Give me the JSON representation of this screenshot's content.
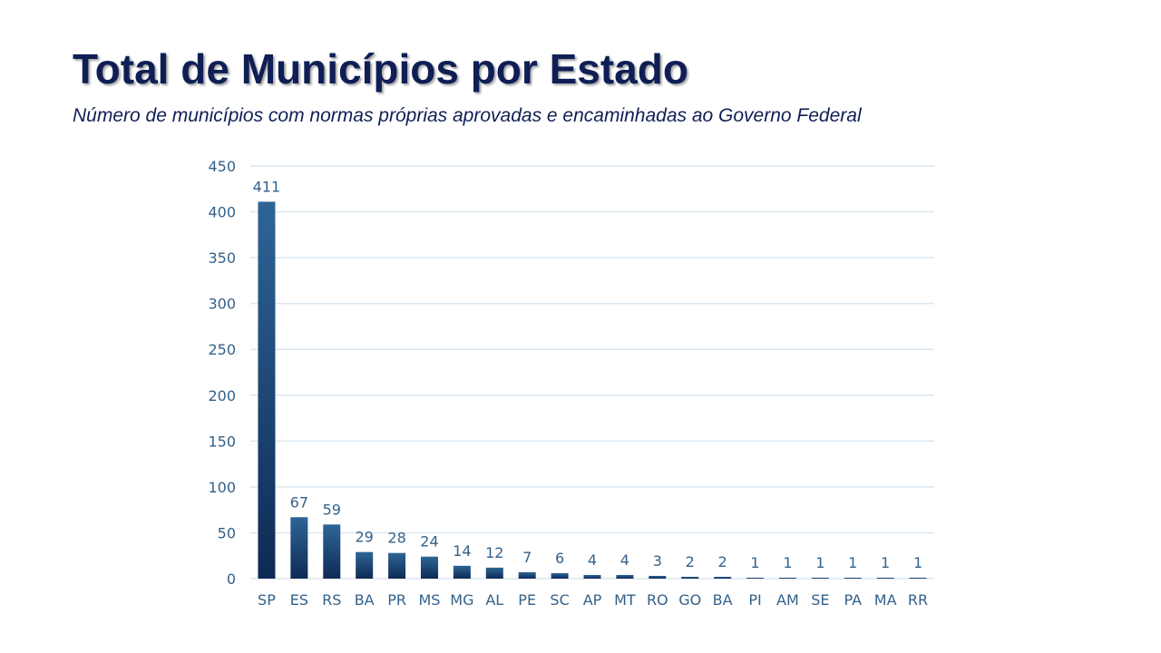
{
  "slide": {
    "title": "Total de Municípios por Estado",
    "subtitle": "Número de municípios com normas próprias aprovadas e encaminhadas ao Governo Federal"
  },
  "chart_data": {
    "type": "bar",
    "categories": [
      "SP",
      "ES",
      "RS",
      "BA",
      "PR",
      "MS",
      "MG",
      "AL",
      "PE",
      "SC",
      "AP",
      "MT",
      "RO",
      "GO",
      "BA",
      "PI",
      "AM",
      "SE",
      "PA",
      "MA",
      "RR"
    ],
    "values": [
      411,
      67,
      59,
      29,
      28,
      24,
      14,
      12,
      7,
      6,
      4,
      4,
      3,
      2,
      2,
      1,
      1,
      1,
      1,
      1,
      1
    ],
    "ylim": [
      0,
      450
    ],
    "yticks": [
      0,
      50,
      100,
      150,
      200,
      250,
      300,
      350,
      400,
      450
    ],
    "grid": true,
    "data_labels": true,
    "colors": {
      "bar_top": "#2e6596",
      "bar_bottom": "#0e2a55",
      "grid": "#dbe7f0",
      "axis_text": "#34618a",
      "label_text": "#34618a"
    }
  }
}
